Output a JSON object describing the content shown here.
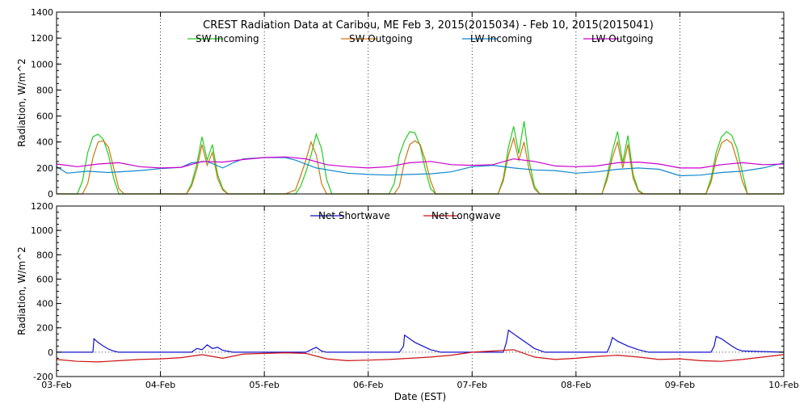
{
  "chart_data": [
    {
      "type": "line",
      "id": "upper",
      "title": "CREST Radiation Data at Caribou, ME   Feb  3, 2015(2015034) - Feb 10, 2015(2015041)",
      "xlabel": "",
      "ylabel": "Radiation, W/m^2",
      "ylim": [
        0,
        1400
      ],
      "yticks": [
        0,
        200,
        400,
        600,
        800,
        1000,
        1200,
        1400
      ],
      "xlim": [
        0,
        7
      ],
      "grid": true,
      "legend_position": "top",
      "series": [
        {
          "name": "SW Incoming",
          "color": "#22cc22",
          "x": [
            0,
            0.2,
            0.25,
            0.3,
            0.35,
            0.4,
            0.45,
            0.5,
            0.55,
            0.6,
            0.65,
            0.7,
            1.0,
            1.25,
            1.3,
            1.35,
            1.4,
            1.45,
            1.5,
            1.55,
            1.6,
            1.65,
            1.7,
            2.0,
            2.25,
            2.3,
            2.35,
            2.4,
            2.45,
            2.5,
            2.55,
            2.6,
            2.65,
            2.7,
            3.0,
            3.2,
            3.25,
            3.3,
            3.35,
            3.4,
            3.45,
            3.5,
            3.55,
            3.6,
            3.65,
            3.7,
            4.0,
            4.25,
            4.3,
            4.35,
            4.4,
            4.45,
            4.5,
            4.55,
            4.6,
            4.65,
            4.7,
            5.0,
            5.25,
            5.3,
            5.35,
            5.4,
            5.45,
            5.5,
            5.55,
            5.6,
            5.65,
            5.7,
            6.0,
            6.25,
            6.3,
            6.35,
            6.4,
            6.45,
            6.5,
            6.55,
            6.6,
            6.65,
            6.7,
            7.0
          ],
          "y": [
            0,
            0,
            100,
            320,
            440,
            460,
            420,
            300,
            120,
            0,
            0,
            0,
            0,
            0,
            80,
            230,
            440,
            260,
            380,
            150,
            40,
            0,
            0,
            0,
            0,
            0,
            60,
            170,
            300,
            460,
            350,
            110,
            0,
            0,
            0,
            0,
            80,
            300,
            410,
            480,
            470,
            370,
            190,
            40,
            0,
            0,
            0,
            0,
            120,
            360,
            520,
            310,
            560,
            250,
            60,
            0,
            0,
            0,
            0,
            140,
            330,
            480,
            240,
            450,
            150,
            30,
            0,
            0,
            0,
            0,
            120,
            320,
            440,
            480,
            450,
            350,
            170,
            0,
            0,
            0
          ]
        },
        {
          "name": "SW Outgoing",
          "color": "#cc7711",
          "x": [
            0,
            0.25,
            0.3,
            0.35,
            0.4,
            0.45,
            0.5,
            0.55,
            0.6,
            0.65,
            1.0,
            1.25,
            1.3,
            1.35,
            1.4,
            1.45,
            1.5,
            1.55,
            1.6,
            1.65,
            2.0,
            2.2,
            2.3,
            2.35,
            2.4,
            2.45,
            2.5,
            2.55,
            2.6,
            2.65,
            3.0,
            3.25,
            3.3,
            3.35,
            3.4,
            3.45,
            3.5,
            3.55,
            3.6,
            3.65,
            4.0,
            4.25,
            4.3,
            4.35,
            4.4,
            4.45,
            4.5,
            4.55,
            4.6,
            4.65,
            5.0,
            5.25,
            5.3,
            5.35,
            5.4,
            5.45,
            5.5,
            5.55,
            5.6,
            5.65,
            6.0,
            6.25,
            6.3,
            6.35,
            6.4,
            6.45,
            6.5,
            6.55,
            6.6,
            6.65,
            7.0
          ],
          "y": [
            0,
            0,
            80,
            280,
            400,
            410,
            360,
            200,
            40,
            0,
            0,
            0,
            60,
            190,
            380,
            220,
            320,
            120,
            30,
            0,
            0,
            0,
            30,
            140,
            260,
            400,
            300,
            80,
            0,
            0,
            0,
            0,
            60,
            250,
            380,
            410,
            380,
            260,
            100,
            0,
            0,
            0,
            100,
            300,
            430,
            260,
            400,
            180,
            40,
            0,
            0,
            0,
            110,
            280,
            400,
            200,
            380,
            120,
            20,
            0,
            0,
            0,
            90,
            270,
            390,
            420,
            390,
            260,
            100,
            0,
            0
          ]
        },
        {
          "name": "LW Incoming",
          "color": "#1188cc",
          "x": [
            0,
            0.1,
            0.3,
            0.5,
            0.8,
            1.0,
            1.2,
            1.3,
            1.45,
            1.6,
            1.7,
            1.8,
            2.0,
            2.2,
            2.3,
            2.5,
            2.8,
            3.0,
            3.2,
            3.4,
            3.6,
            3.8,
            4.0,
            4.2,
            4.4,
            4.6,
            4.8,
            5.0,
            5.2,
            5.4,
            5.6,
            5.8,
            6.0,
            6.2,
            6.4,
            6.6,
            6.8,
            7.0
          ],
          "y": [
            210,
            160,
            175,
            165,
            180,
            195,
            205,
            240,
            250,
            200,
            240,
            270,
            280,
            280,
            260,
            200,
            160,
            150,
            145,
            150,
            155,
            170,
            210,
            220,
            200,
            185,
            180,
            160,
            170,
            190,
            200,
            190,
            140,
            145,
            165,
            175,
            200,
            240
          ]
        },
        {
          "name": "LW Outgoing",
          "color": "#cc00cc",
          "x": [
            0,
            0.2,
            0.4,
            0.6,
            0.8,
            1.0,
            1.2,
            1.4,
            1.6,
            1.8,
            2.0,
            2.2,
            2.4,
            2.6,
            2.8,
            3.0,
            3.2,
            3.4,
            3.6,
            3.8,
            4.0,
            4.2,
            4.4,
            4.6,
            4.8,
            5.0,
            5.2,
            5.4,
            5.6,
            5.8,
            6.0,
            6.2,
            6.4,
            6.6,
            6.8,
            7.0
          ],
          "y": [
            230,
            210,
            230,
            240,
            210,
            200,
            205,
            250,
            245,
            265,
            280,
            285,
            270,
            225,
            210,
            200,
            210,
            240,
            250,
            225,
            220,
            225,
            270,
            250,
            215,
            210,
            215,
            240,
            245,
            230,
            200,
            200,
            225,
            240,
            225,
            230
          ]
        }
      ]
    },
    {
      "type": "line",
      "id": "lower",
      "title": "",
      "xlabel": "Date (EST)",
      "ylabel": "Radiation, W/m^2",
      "ylim": [
        -200,
        1200
      ],
      "yticks": [
        -200,
        0,
        200,
        400,
        600,
        800,
        1000,
        1200
      ],
      "xlim": [
        0,
        7
      ],
      "xticks": [
        "03-Feb",
        "04-Feb",
        "05-Feb",
        "06-Feb",
        "07-Feb",
        "08-Feb",
        "09-Feb",
        "10-Feb"
      ],
      "grid": true,
      "legend_position": "top",
      "series": [
        {
          "name": "Net Shortwave",
          "color": "#1111cc",
          "x": [
            0,
            0.35,
            0.36,
            0.4,
            0.45,
            0.5,
            0.55,
            0.6,
            1.0,
            1.3,
            1.35,
            1.4,
            1.45,
            1.5,
            1.55,
            1.6,
            1.7,
            2.0,
            2.4,
            2.45,
            2.5,
            2.55,
            2.6,
            3.0,
            3.3,
            3.34,
            3.35,
            3.4,
            3.45,
            3.5,
            3.55,
            3.6,
            3.7,
            4.0,
            4.3,
            4.33,
            4.35,
            4.4,
            4.45,
            4.5,
            4.55,
            4.6,
            4.7,
            5.0,
            5.3,
            5.33,
            5.35,
            5.4,
            5.45,
            5.5,
            5.55,
            5.6,
            5.7,
            6.0,
            6.3,
            6.33,
            6.35,
            6.4,
            6.45,
            6.5,
            6.55,
            6.6,
            7.0
          ],
          "y": [
            0,
            0,
            110,
            80,
            50,
            25,
            10,
            0,
            0,
            0,
            30,
            20,
            60,
            30,
            40,
            15,
            0,
            0,
            0,
            20,
            40,
            10,
            0,
            0,
            0,
            50,
            140,
            110,
            80,
            60,
            40,
            20,
            0,
            0,
            0,
            80,
            180,
            150,
            120,
            90,
            60,
            30,
            0,
            0,
            0,
            60,
            120,
            90,
            70,
            50,
            35,
            20,
            0,
            0,
            0,
            50,
            130,
            110,
            80,
            50,
            25,
            10,
            0
          ]
        },
        {
          "name": "Net Longwave",
          "color": "#cc1111",
          "x": [
            0,
            0.2,
            0.4,
            0.6,
            0.8,
            1.0,
            1.2,
            1.4,
            1.6,
            1.8,
            2.0,
            2.2,
            2.4,
            2.6,
            2.8,
            3.0,
            3.2,
            3.4,
            3.6,
            3.8,
            4.0,
            4.2,
            4.4,
            4.6,
            4.8,
            5.0,
            5.2,
            5.4,
            5.6,
            5.8,
            6.0,
            6.2,
            6.4,
            6.6,
            6.8,
            7.0
          ],
          "y": [
            -60,
            -75,
            -80,
            -70,
            -60,
            -55,
            -45,
            -20,
            -50,
            -15,
            -10,
            -5,
            -10,
            -55,
            -70,
            -65,
            -60,
            -50,
            -40,
            -25,
            0,
            10,
            20,
            -40,
            -60,
            -50,
            -35,
            -25,
            -40,
            -60,
            -55,
            -70,
            -75,
            -60,
            -40,
            -20
          ]
        }
      ]
    }
  ]
}
